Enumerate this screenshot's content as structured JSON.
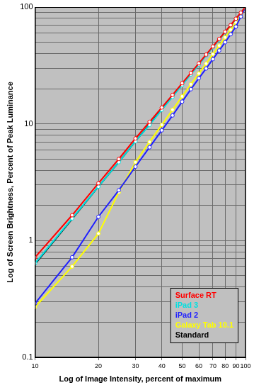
{
  "chart_data": {
    "type": "line",
    "x_label": "Log of Image Intensity, percent of maximum",
    "y_label": "Log of Screen Brightness, Percent of Peak Luminance",
    "log": true,
    "grid": true,
    "legend": "lower right",
    "xlim": [
      10,
      100
    ],
    "xticks": [
      10,
      20,
      30,
      40,
      50,
      60,
      70,
      80,
      90,
      100
    ],
    "ylim": [
      0.1,
      100
    ],
    "yticks": [
      0.1,
      1,
      10,
      100
    ],
    "x": [
      10,
      15,
      20,
      25,
      30,
      35,
      40,
      45,
      50,
      55,
      60,
      65,
      70,
      75,
      80,
      85,
      90,
      95,
      100
    ],
    "series": [
      {
        "name": "Surface RT",
        "color": "#ff0000",
        "marker": "circle",
        "line_style": "solid",
        "values": [
          0.72,
          1.65,
          3.1,
          5.0,
          7.5,
          10.4,
          13.8,
          17.7,
          22.3,
          27.3,
          33,
          39.2,
          46,
          53.4,
          61.5,
          70,
          79.5,
          89.5,
          100
        ]
      },
      {
        "name": "iPad 3",
        "color": "#00e0e0",
        "marker": "circle",
        "line_style": "solid",
        "values": [
          0.64,
          1.55,
          2.9,
          4.7,
          7.1,
          9.8,
          13.2,
          17,
          21.5,
          26.5,
          32.2,
          38.5,
          45.3,
          52.8,
          61,
          69.7,
          79,
          89,
          100
        ]
      },
      {
        "name": "iPad 2",
        "color": "#2020ff",
        "marker": "circle",
        "line_style": "solid",
        "values": [
          0.29,
          0.72,
          1.6,
          2.7,
          4.3,
          6.3,
          8.8,
          11.8,
          15.5,
          19.8,
          24.6,
          29.8,
          35.8,
          42.5,
          50,
          58.5,
          68,
          83,
          100
        ]
      },
      {
        "name": "Galaxy Tab 10.1",
        "color": "#ffff00",
        "marker": "circle",
        "line_style": "solid",
        "values": [
          0.27,
          0.6,
          1.15,
          2.6,
          4.7,
          7,
          9.8,
          13.2,
          17.2,
          21.8,
          27,
          32.8,
          39.5,
          46.8,
          55,
          64,
          74,
          86,
          100
        ]
      },
      {
        "name": "Standard",
        "color": "#000000",
        "marker": "none",
        "line_style": "solid",
        "values": [
          0.63,
          1.53,
          2.9,
          4.7,
          7.1,
          9.9,
          13.3,
          17.2,
          21.8,
          26.8,
          32.5,
          38.7,
          45.6,
          53.1,
          61.2,
          69.9,
          79.3,
          89.3,
          100
        ]
      }
    ]
  }
}
